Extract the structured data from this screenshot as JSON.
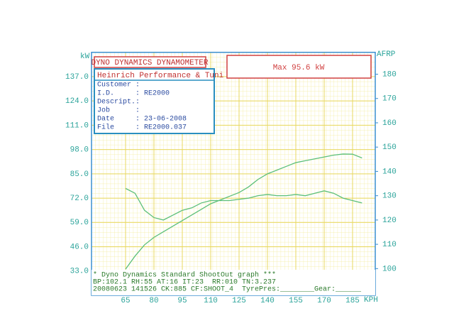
{
  "chart_data": {
    "type": "line",
    "title": "DYNO DYNAMICS DYNAMOMETER",
    "y_label": "kW",
    "y2_label": "AFRP",
    "x_label": "KPH",
    "annotation": "Max  95.6 kW",
    "info": {
      "title": "Heinrich Performance & Tuni",
      "rows": [
        "Customer :",
        "I.D.     : RE2000",
        "Descript.:",
        "Job      :",
        "Date     : 23-06-2008",
        "File     : RE2000.037"
      ]
    },
    "footer": [
      "* Dyno Dynamics Standard ShootOut graph ***",
      "BP:102.1 RH:55 AT:16 IT:23  RR:010 TN:3.237",
      "20080623 141526 CK:885 CF:SHOOT_4  TyrePres:________Gear:______"
    ],
    "x": [
      65,
      70,
      75,
      80,
      85,
      90,
      95,
      100,
      105,
      110,
      115,
      120,
      125,
      130,
      135,
      140,
      145,
      150,
      155,
      160,
      165,
      170,
      175,
      180,
      185,
      190
    ],
    "series": [
      {
        "color": "#5cbf7a",
        "values": [
          34,
          41,
          47,
          51,
          54,
          57,
          60,
          63,
          66,
          69,
          71,
          73,
          75,
          78,
          82,
          85,
          87,
          89,
          91,
          92,
          93,
          94,
          95,
          95.6,
          95.5,
          93.5
        ]
      },
      {
        "color": "#5cbf7a",
        "axis": "y2",
        "values": [
          133,
          131,
          124,
          121,
          120,
          122,
          124,
          125,
          127,
          128,
          128,
          128,
          128.5,
          129,
          130,
          130.5,
          130,
          130,
          130.5,
          130,
          131,
          132,
          131,
          129,
          128,
          127
        ]
      }
    ],
    "xlim": [
      47,
      197
    ],
    "xticks": [
      65,
      80,
      95,
      110,
      125,
      140,
      155,
      170,
      185
    ],
    "ylim": [
      20,
      150
    ],
    "yticks": [
      {
        "value": 33,
        "label": "33.0"
      },
      {
        "value": 46,
        "label": "46.0"
      },
      {
        "value": 59,
        "label": "59.0"
      },
      {
        "value": 72,
        "label": "72.0"
      },
      {
        "value": 85,
        "label": "85.0"
      },
      {
        "value": 98,
        "label": "98.0"
      },
      {
        "value": 111,
        "label": "111.0"
      },
      {
        "value": 124,
        "label": "124.0"
      },
      {
        "value": 137,
        "label": "137.0"
      }
    ],
    "y2lim": [
      89,
      189
    ],
    "y2ticks": [
      100,
      110,
      120,
      130,
      140,
      150,
      160,
      170,
      180
    ],
    "grid": true
  }
}
